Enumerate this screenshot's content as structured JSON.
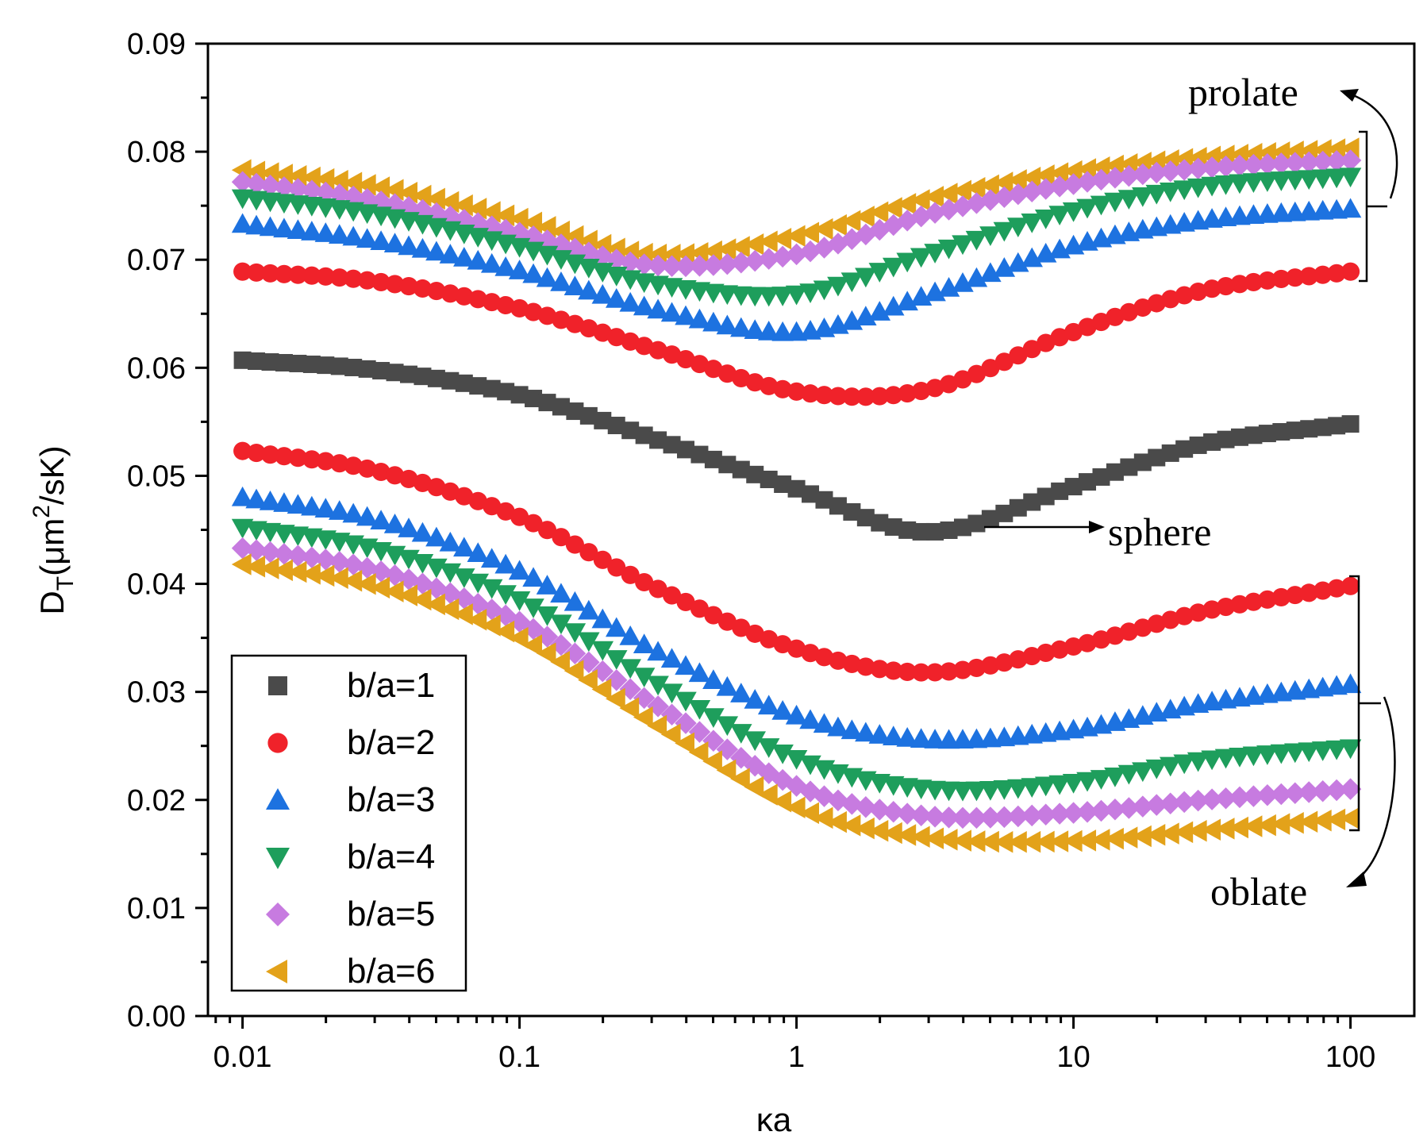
{
  "chart_data": {
    "type": "scatter",
    "xscale": "log",
    "xlim": [
      0.0075,
      170
    ],
    "ylim": [
      0,
      0.09
    ],
    "xticks": [
      {
        "value": 0.01,
        "label": "0.01"
      },
      {
        "value": 0.1,
        "label": "0.1"
      },
      {
        "value": 1,
        "label": "1"
      },
      {
        "value": 10,
        "label": "10"
      },
      {
        "value": 100,
        "label": "100"
      }
    ],
    "yticks": [
      {
        "value": 0.0,
        "label": "0.00"
      },
      {
        "value": 0.01,
        "label": "0.01"
      },
      {
        "value": 0.02,
        "label": "0.02"
      },
      {
        "value": 0.03,
        "label": "0.03"
      },
      {
        "value": 0.04,
        "label": "0.04"
      },
      {
        "value": 0.05,
        "label": "0.05"
      },
      {
        "value": 0.06,
        "label": "0.06"
      },
      {
        "value": 0.07,
        "label": "0.07"
      },
      {
        "value": 0.08,
        "label": "0.08"
      },
      {
        "value": 0.09,
        "label": "0.09"
      }
    ],
    "xlabel": "κa",
    "ylabel": {
      "main": "D",
      "sub": "T",
      "paren": "(μm",
      "sup": "2",
      "tail": "/sK)"
    },
    "legend_position": "bottom-left",
    "x_range": [
      0.01,
      100
    ],
    "series": [
      {
        "name": "b/a=6",
        "marker": "triangle-left",
        "color": "#e3a21a",
        "x": [
          0.01,
          0.03,
          0.1,
          0.3,
          1,
          3,
          10,
          30,
          100
        ],
        "values": [
          0.0783,
          0.0768,
          0.0738,
          0.0705,
          0.0722,
          0.0757,
          0.0782,
          0.0795,
          0.0803
        ]
      },
      {
        "name": "b/a=5",
        "marker": "diamond",
        "color": "#c77be0",
        "x": [
          0.01,
          0.03,
          0.1,
          0.3,
          1,
          3,
          10,
          30,
          100
        ],
        "values": [
          0.0772,
          0.0755,
          0.0725,
          0.0695,
          0.0705,
          0.0742,
          0.077,
          0.0785,
          0.0792
        ]
      },
      {
        "name": "b/a=4",
        "marker": "triangle-down",
        "color": "#1e9e5c",
        "x": [
          0.01,
          0.03,
          0.1,
          0.3,
          1,
          3,
          10,
          30,
          100
        ],
        "values": [
          0.0757,
          0.0742,
          0.0712,
          0.0678,
          0.0668,
          0.0705,
          0.0745,
          0.0768,
          0.0777
        ]
      },
      {
        "name": "b/a=3",
        "marker": "triangle-up",
        "color": "#1d72e0",
        "x": [
          0.01,
          0.03,
          0.1,
          0.3,
          1,
          3,
          10,
          30,
          100
        ],
        "values": [
          0.0733,
          0.0718,
          0.069,
          0.0655,
          0.0633,
          0.0668,
          0.0713,
          0.0737,
          0.0747
        ]
      },
      {
        "name": "b/a=2",
        "marker": "circle",
        "color": "#f0222a",
        "x": [
          0.01,
          0.03,
          0.1,
          0.3,
          1,
          3,
          10,
          30,
          100
        ],
        "values": [
          0.0689,
          0.068,
          0.0655,
          0.0618,
          0.0578,
          0.058,
          0.0633,
          0.0672,
          0.0689
        ]
      },
      {
        "name": "b/a=1",
        "marker": "square",
        "color": "#4a4a4a",
        "x": [
          0.01,
          0.03,
          0.1,
          0.3,
          1,
          3,
          10,
          30,
          100
        ],
        "values": [
          0.0607,
          0.0598,
          0.0575,
          0.0535,
          0.0488,
          0.0448,
          0.049,
          0.053,
          0.0548
        ]
      },
      {
        "name": "b/a=2",
        "marker": "circle",
        "color": "#f0222a",
        "x": [
          0.01,
          0.03,
          0.1,
          0.3,
          1,
          3,
          10,
          30,
          100
        ],
        "values": [
          0.0523,
          0.0505,
          0.0462,
          0.0398,
          0.034,
          0.0318,
          0.0342,
          0.0375,
          0.0398
        ]
      },
      {
        "name": "b/a=3",
        "marker": "triangle-up",
        "color": "#1d72e0",
        "x": [
          0.01,
          0.03,
          0.1,
          0.3,
          1,
          3,
          10,
          30,
          100
        ],
        "values": [
          0.048,
          0.046,
          0.0412,
          0.034,
          0.0278,
          0.0256,
          0.0265,
          0.029,
          0.0307
        ]
      },
      {
        "name": "b/a=4",
        "marker": "triangle-down",
        "color": "#1e9e5c",
        "x": [
          0.01,
          0.03,
          0.1,
          0.3,
          1,
          3,
          10,
          30,
          100
        ],
        "values": [
          0.0452,
          0.0432,
          0.0385,
          0.031,
          0.0238,
          0.021,
          0.0216,
          0.0237,
          0.0248
        ]
      },
      {
        "name": "b/a=5",
        "marker": "diamond",
        "color": "#c77be0",
        "x": [
          0.01,
          0.03,
          0.1,
          0.3,
          1,
          3,
          10,
          30,
          100
        ],
        "values": [
          0.0433,
          0.0413,
          0.0365,
          0.029,
          0.0213,
          0.0185,
          0.0188,
          0.02,
          0.021
        ]
      },
      {
        "name": "b/a=6",
        "marker": "triangle-left",
        "color": "#e3a21a",
        "x": [
          0.01,
          0.03,
          0.1,
          0.3,
          1,
          3,
          10,
          30,
          100
        ],
        "values": [
          0.0418,
          0.0398,
          0.035,
          0.0272,
          0.0193,
          0.0165,
          0.0162,
          0.0172,
          0.0183
        ]
      }
    ],
    "legend": [
      {
        "label": "b/a=1",
        "marker": "square",
        "color": "#4a4a4a"
      },
      {
        "label": "b/a=2",
        "marker": "circle",
        "color": "#f0222a"
      },
      {
        "label": "b/a=3",
        "marker": "triangle-up",
        "color": "#1d72e0"
      },
      {
        "label": "b/a=4",
        "marker": "triangle-down",
        "color": "#1e9e5c"
      },
      {
        "label": "b/a=5",
        "marker": "diamond",
        "color": "#c77be0"
      },
      {
        "label": "b/a=6",
        "marker": "triangle-left",
        "color": "#e3a21a"
      }
    ],
    "annotations": {
      "prolate": "prolate",
      "sphere": "sphere",
      "oblate": "oblate"
    }
  }
}
